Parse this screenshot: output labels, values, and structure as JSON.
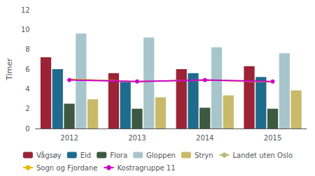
{
  "chart_data": {
    "type": "bar",
    "categories": [
      "2012",
      "2013",
      "2014",
      "2015"
    ],
    "series": [
      {
        "name": "Vågsøy",
        "type": "bar",
        "color": "#9B2335",
        "values": [
          7.2,
          5.6,
          6.0,
          6.3
        ]
      },
      {
        "name": "Eid",
        "type": "bar",
        "color": "#1F6B8E",
        "values": [
          6.0,
          4.7,
          5.6,
          5.2
        ]
      },
      {
        "name": "Flora",
        "type": "bar",
        "color": "#3D5941",
        "values": [
          2.5,
          2.0,
          2.1,
          2.0
        ]
      },
      {
        "name": "Gloppen",
        "type": "bar",
        "color": "#A8C5CC",
        "values": [
          9.6,
          9.2,
          8.2,
          7.6
        ]
      },
      {
        "name": "Stryn",
        "type": "bar",
        "color": "#C8BA6A",
        "values": [
          2.95,
          3.15,
          3.35,
          3.85
        ]
      },
      {
        "name": "Landet uten Oslo",
        "type": "line",
        "color": "#B8B86E",
        "values": [
          5.0,
          4.75,
          4.9,
          4.7
        ]
      },
      {
        "name": "Sogn og Fjordane",
        "type": "line",
        "color": "#E8B800",
        "values": [
          5.0,
          4.75,
          4.9,
          4.7
        ]
      },
      {
        "name": "Kostragruppe 11",
        "type": "line",
        "color": "#CC00CC",
        "marker": "circle",
        "values": [
          4.9,
          4.75,
          4.9,
          4.75
        ]
      }
    ],
    "y_label": "Timer",
    "ylim": [
      0,
      12
    ],
    "yticks": [
      0,
      2,
      4,
      6,
      8,
      10,
      12
    ],
    "grid": false,
    "legend": "bottom"
  }
}
